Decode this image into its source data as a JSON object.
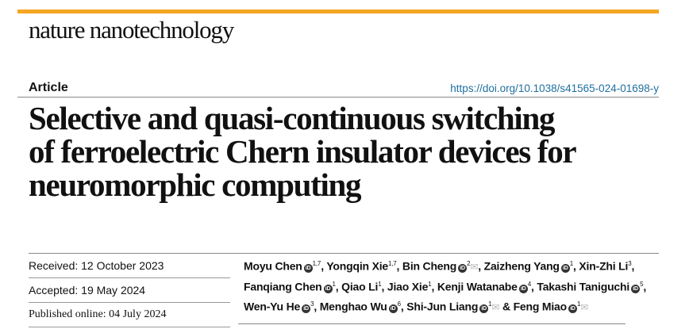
{
  "journal": "nature nanotechnology",
  "colors": {
    "accent_bar": "#f5a623",
    "doi_link": "#1f6f9f"
  },
  "article_type": "Article",
  "doi": "https://doi.org/10.1038/s41565-024-01698-y",
  "title_lines": [
    "Selective and quasi-continuous switching",
    "of ferroelectric Chern insulator devices for",
    "neuromorphic computing"
  ],
  "dates": {
    "received": "Received: 12 October 2023",
    "accepted": "Accepted: 19 May 2024",
    "published": "Published online: 04 July 2024"
  },
  "authors": [
    {
      "name": "Moyu Chen",
      "orcid": true,
      "aff": "1,7",
      "mail": false,
      "sep": ", "
    },
    {
      "name": "Yongqin Xie",
      "orcid": false,
      "aff": "1,7",
      "mail": false,
      "sep": ", "
    },
    {
      "name": "Bin Cheng",
      "orcid": true,
      "aff": "2",
      "mail": true,
      "sep": ", "
    },
    {
      "name": "Zaizheng Yang",
      "orcid": true,
      "aff": "1",
      "mail": false,
      "sep": ", "
    },
    {
      "name": "Xin-Zhi Li",
      "orcid": false,
      "aff": "3",
      "mail": false,
      "sep": ", "
    },
    {
      "name": "Fanqiang Chen",
      "orcid": true,
      "aff": "1",
      "mail": false,
      "sep": ", "
    },
    {
      "name": "Qiao Li",
      "orcid": false,
      "aff": "1",
      "mail": false,
      "sep": ", "
    },
    {
      "name": "Jiao Xie",
      "orcid": false,
      "aff": "1",
      "mail": false,
      "sep": ", "
    },
    {
      "name": "Kenji Watanabe",
      "orcid": true,
      "aff": "4",
      "mail": false,
      "sep": ", "
    },
    {
      "name": "Takashi Taniguchi",
      "orcid": true,
      "aff": "5",
      "mail": false,
      "sep": ", "
    },
    {
      "name": "Wen-Yu He",
      "orcid": true,
      "aff": "3",
      "mail": false,
      "sep": ", "
    },
    {
      "name": "Menghao Wu",
      "orcid": true,
      "aff": "6",
      "mail": false,
      "sep": ", "
    },
    {
      "name": "Shi-Jun Liang",
      "orcid": true,
      "aff": "1",
      "mail": true,
      "sep": " & "
    },
    {
      "name": "Feng Miao",
      "orcid": true,
      "aff": "1",
      "mail": true,
      "sep": ""
    }
  ]
}
